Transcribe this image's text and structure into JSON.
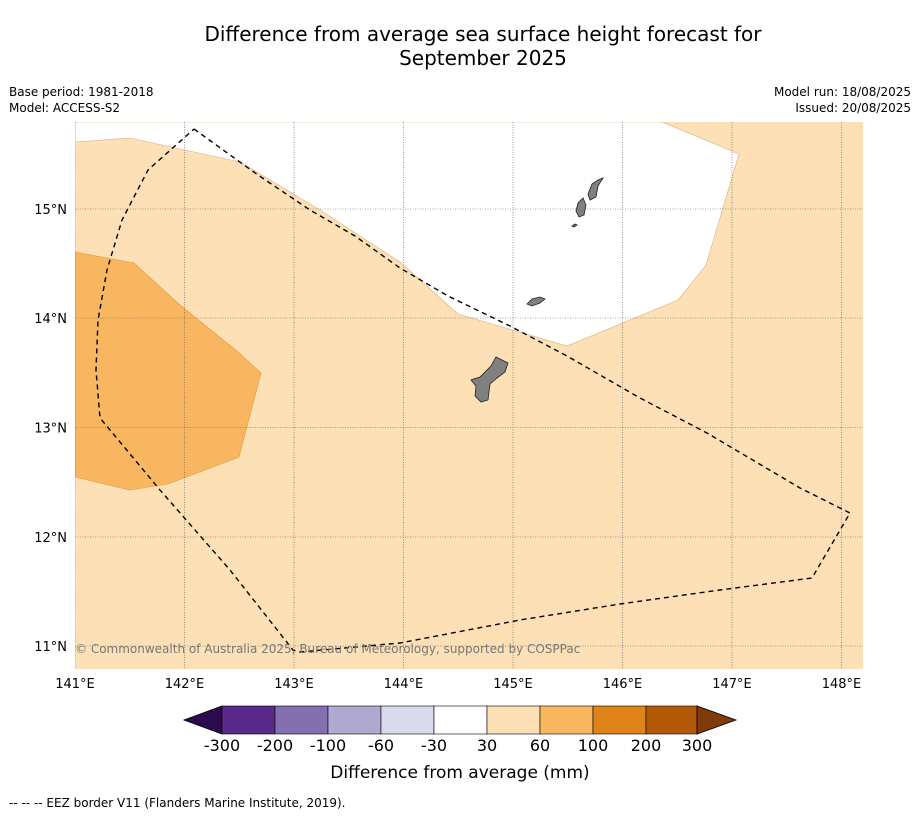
{
  "title_line1": "Difference from average sea surface height forecast for",
  "title_line2": "September 2025",
  "base_period": "Base period: 1981-2018",
  "model": "Model: ACCESS-S2",
  "model_run": "Model run: 18/08/2025",
  "issued": "Issued: 20/08/2025",
  "copyright": "© Commonwealth of Australia 2025, Bureau of Meteorology, supported by COSPPac",
  "lon_labels": [
    "141°E",
    "142°E",
    "143°E",
    "144°E",
    "145°E",
    "146°E",
    "147°E",
    "148°E"
  ],
  "lat_labels": [
    "15°N",
    "14°N",
    "13°N",
    "12°N",
    "11°N"
  ],
  "colorbar": {
    "title": "Difference from average (mm)",
    "tick_labels": [
      "-300",
      "-200",
      "-100",
      "-60",
      "-30",
      "30",
      "60",
      "100",
      "200",
      "300"
    ],
    "colors": [
      "#2d0a4e",
      "#5a2a8a",
      "#8270b0",
      "#b1a8d2",
      "#d8d9ec",
      "#ffffff",
      "#fde0b5",
      "#f9b660",
      "#e0821a",
      "#b35806",
      "#7f3b08"
    ]
  },
  "legend_note": "--  --  -- EEZ border V11 (Flanders Marine Institute, 2019).",
  "fill_colors": {
    "band_30_60": "#fde0b5",
    "band_60_100": "#f9b660",
    "neutral": "#ffffff",
    "land": "#808080"
  }
}
